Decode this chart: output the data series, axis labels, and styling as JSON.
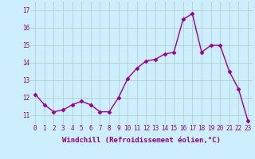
{
  "x": [
    0,
    1,
    2,
    3,
    4,
    5,
    6,
    7,
    8,
    9,
    10,
    11,
    12,
    13,
    14,
    15,
    16,
    17,
    18,
    19,
    20,
    21,
    22,
    23
  ],
  "y": [
    12.2,
    11.6,
    11.2,
    11.3,
    11.6,
    11.8,
    11.6,
    11.2,
    11.2,
    12.0,
    13.1,
    13.7,
    14.1,
    14.2,
    14.5,
    14.6,
    16.5,
    16.8,
    14.6,
    15.0,
    15.0,
    13.5,
    12.5,
    10.7
  ],
  "line_color": "#990099",
  "marker": "D",
  "markersize": 2.5,
  "linewidth": 1.0,
  "bg_color": "#cceeff",
  "grid_color": "#aaccbb",
  "xlabel": "Windchill (Refroidissement éolien,°C)",
  "xlabel_fontsize": 6.5,
  "ylabel_ticks": [
    11,
    12,
    13,
    14,
    15,
    16,
    17
  ],
  "xtick_labels": [
    "0",
    "1",
    "2",
    "3",
    "4",
    "5",
    "6",
    "7",
    "8",
    "9",
    "10",
    "11",
    "12",
    "13",
    "14",
    "15",
    "16",
    "17",
    "18",
    "19",
    "20",
    "21",
    "22",
    "23"
  ],
  "ylim": [
    10.5,
    17.5
  ],
  "xlim": [
    -0.5,
    23.5
  ],
  "tick_fontsize": 5.5,
  "tick_color": "#880088",
  "xlabel_color": "#880088"
}
